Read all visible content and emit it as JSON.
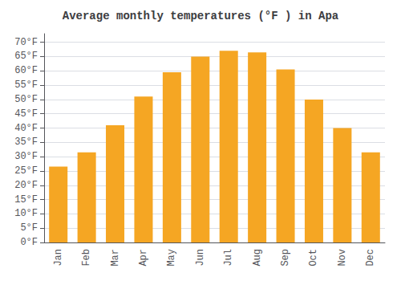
{
  "chart_data": {
    "type": "bar",
    "title": "Average monthly temperatures (°F ) in Apa",
    "categories": [
      "Jan",
      "Feb",
      "Mar",
      "Apr",
      "May",
      "Jun",
      "Jul",
      "Aug",
      "Sep",
      "Oct",
      "Nov",
      "Dec"
    ],
    "values": [
      26.5,
      31.5,
      41.0,
      51.0,
      59.5,
      65.0,
      67.0,
      66.5,
      60.5,
      50.0,
      40.0,
      31.5
    ],
    "color": "#F5A623",
    "ylim": [
      0,
      73
    ],
    "yticks": [
      {
        "value": 0,
        "label": "0°F"
      },
      {
        "value": 5,
        "label": "5°F"
      },
      {
        "value": 10,
        "label": "10°F"
      },
      {
        "value": 15,
        "label": "15°F"
      },
      {
        "value": 20,
        "label": "20°F"
      },
      {
        "value": 25,
        "label": "25°F"
      },
      {
        "value": 30,
        "label": "30°F"
      },
      {
        "value": 35,
        "label": "35°F"
      },
      {
        "value": 40,
        "label": "40°F"
      },
      {
        "value": 45,
        "label": "45°F"
      },
      {
        "value": 50,
        "label": "50°F"
      },
      {
        "value": 55,
        "label": "55°F"
      },
      {
        "value": 60,
        "label": "60°F"
      },
      {
        "value": 65,
        "label": "65°F"
      },
      {
        "value": 70,
        "label": "70°F"
      }
    ],
    "grid": true
  }
}
